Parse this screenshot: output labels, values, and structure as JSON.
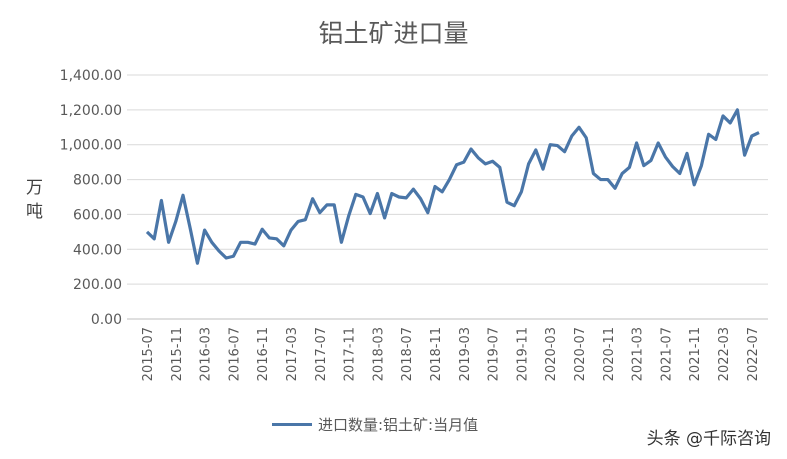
{
  "chart_data": {
    "type": "line",
    "title": "铝土矿进口量",
    "ylabel": "万吨",
    "ylim": [
      0,
      1400
    ],
    "yticks": [
      "0.00",
      "200.00",
      "400.00",
      "600.00",
      "800.00",
      "1,000.00",
      "1,200.00",
      "1,400.00"
    ],
    "grid": true,
    "legend_position": "bottom",
    "line_color": "#4a76a8",
    "x_start": "2015-07",
    "xtick_labels": [
      "2015-07",
      "2015-11",
      "2016-03",
      "2016-07",
      "2016-11",
      "2017-03",
      "2017-07",
      "2017-11",
      "2018-03",
      "2018-07",
      "2018-11",
      "2019-03",
      "2019-07",
      "2019-11",
      "2020-03",
      "2020-07",
      "2020-11",
      "2021-03",
      "2021-07",
      "2021-11",
      "2022-03",
      "2022-07"
    ],
    "series": [
      {
        "name": "进口数量:铝土矿:当月值",
        "values": [
          500,
          460,
          680,
          440,
          560,
          710,
          520,
          320,
          510,
          440,
          390,
          350,
          360,
          440,
          440,
          430,
          515,
          465,
          460,
          420,
          510,
          560,
          570,
          690,
          610,
          655,
          655,
          440,
          590,
          715,
          700,
          605,
          720,
          580,
          720,
          700,
          695,
          745,
          690,
          610,
          760,
          730,
          800,
          885,
          900,
          975,
          925,
          890,
          905,
          870,
          670,
          650,
          730,
          890,
          970,
          860,
          1000,
          995,
          960,
          1050,
          1100,
          1040,
          835,
          800,
          800,
          750,
          835,
          870,
          1010,
          880,
          910,
          1010,
          930,
          875,
          835,
          950,
          770,
          880,
          1060,
          1030,
          1165,
          1125,
          1200,
          940,
          1050,
          1070
        ]
      }
    ]
  },
  "watermark": "头条 @千际咨询"
}
